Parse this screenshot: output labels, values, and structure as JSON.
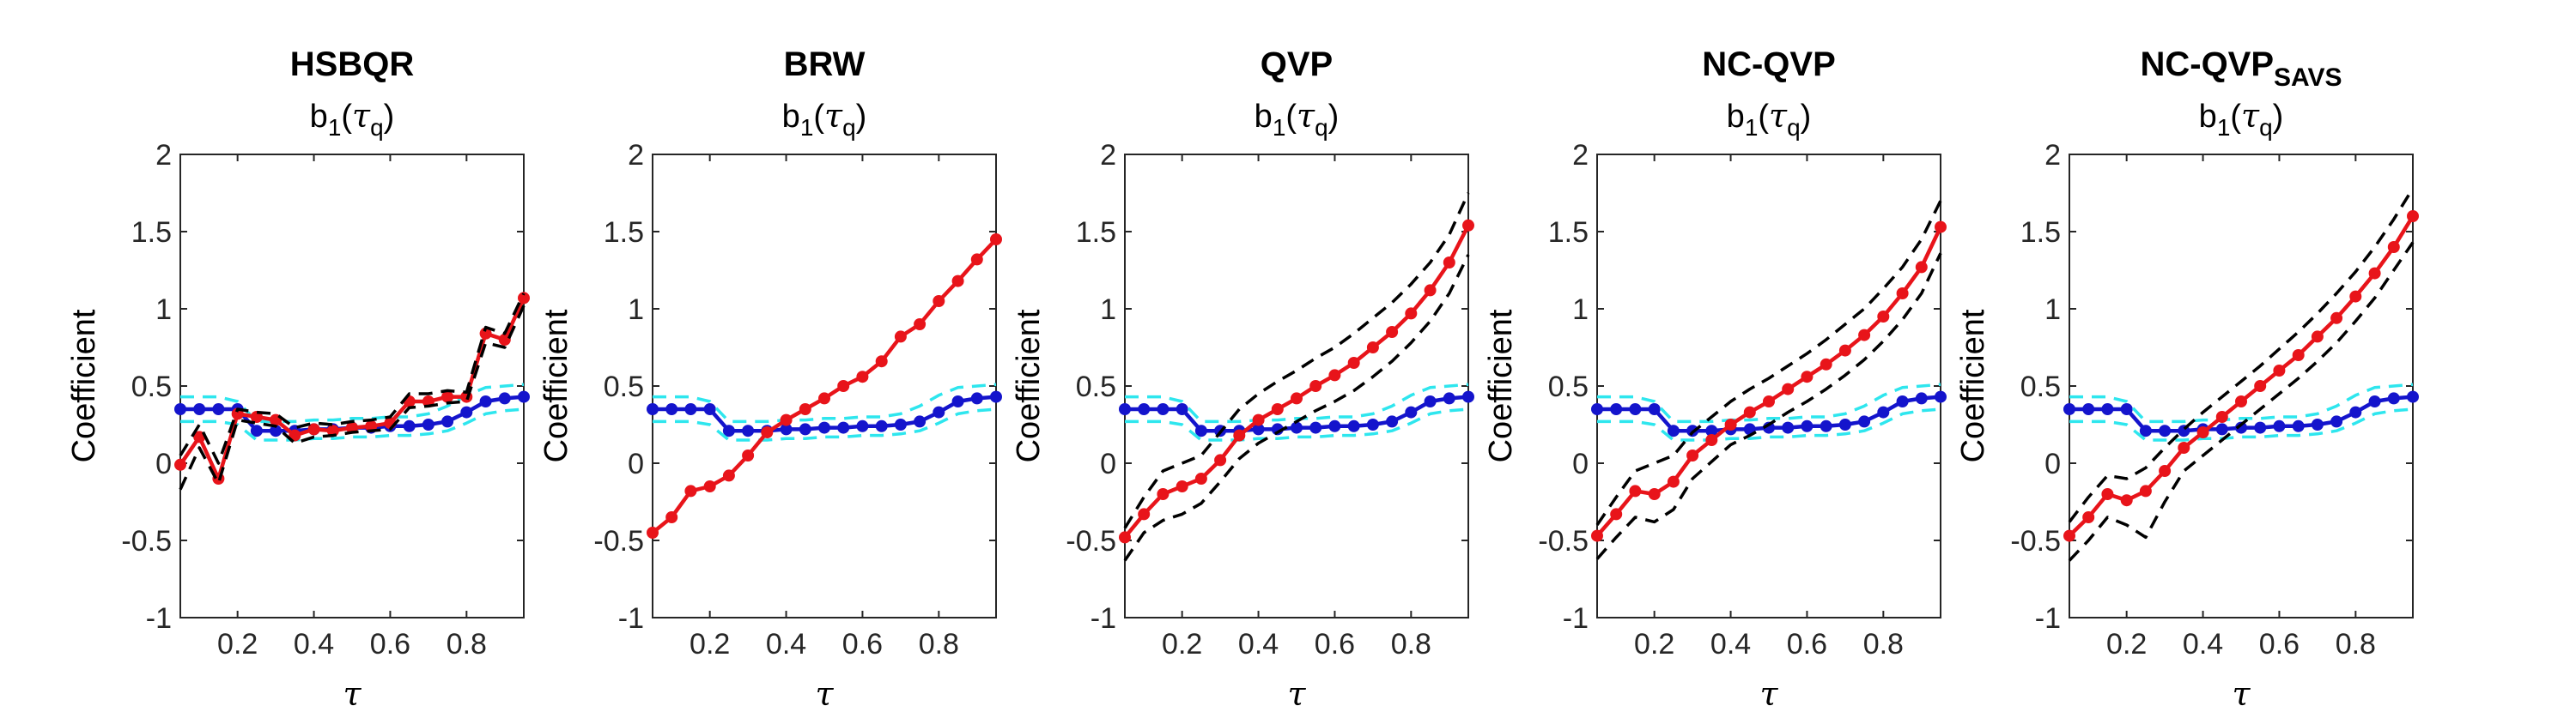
{
  "figure": {
    "colors": {
      "red": "#e8141a",
      "blue": "#1414cc",
      "cyan": "#2ee6ee",
      "black": "#000000"
    }
  },
  "chart_data": [
    {
      "type": "line",
      "title": "HSBQR",
      "title_subscript": "",
      "subtitle": "b1(τq)",
      "subtitle_parts": {
        "base": "b",
        "sub1": "1",
        "open": "(",
        "tau": "τ",
        "sub2": "q",
        "close": ")"
      },
      "xlabel": "τ",
      "ylabel": "Coefficient",
      "xlim": [
        0.05,
        0.95
      ],
      "ylim": [
        -1,
        2
      ],
      "xticks": [
        "0.2",
        "0.4",
        "0.6",
        "0.8"
      ],
      "yticks": [
        "-1",
        "-0.5",
        "0",
        "0.5",
        "1",
        "1.5",
        "2"
      ],
      "x": [
        0.05,
        0.1,
        0.15,
        0.2,
        0.25,
        0.3,
        0.35,
        0.4,
        0.45,
        0.5,
        0.55,
        0.6,
        0.65,
        0.7,
        0.75,
        0.8,
        0.85,
        0.9,
        0.95
      ],
      "series": [
        {
          "color": "blue",
          "style": "solid-markers",
          "values": [
            0.35,
            0.35,
            0.35,
            0.35,
            0.21,
            0.21,
            0.21,
            0.22,
            0.22,
            0.23,
            0.23,
            0.24,
            0.24,
            0.25,
            0.27,
            0.33,
            0.4,
            0.42,
            0.43
          ]
        },
        {
          "color": "cyan",
          "style": "dashed",
          "values": [
            0.43,
            0.43,
            0.43,
            0.4,
            0.27,
            0.27,
            0.27,
            0.28,
            0.28,
            0.29,
            0.29,
            0.3,
            0.3,
            0.32,
            0.37,
            0.44,
            0.49,
            0.5,
            0.51
          ]
        },
        {
          "color": "cyan",
          "style": "dashed",
          "values": [
            0.27,
            0.27,
            0.27,
            0.25,
            0.15,
            0.15,
            0.15,
            0.16,
            0.16,
            0.17,
            0.17,
            0.18,
            0.18,
            0.19,
            0.21,
            0.26,
            0.32,
            0.34,
            0.35
          ]
        },
        {
          "color": "red",
          "style": "solid-markers",
          "values": [
            -0.01,
            0.17,
            -0.1,
            0.32,
            0.3,
            0.28,
            0.18,
            0.22,
            0.21,
            0.23,
            0.24,
            0.26,
            0.4,
            0.4,
            0.43,
            0.43,
            0.84,
            0.8,
            1.07
          ]
        },
        {
          "color": "black",
          "style": "dashed",
          "values": [
            0.05,
            0.25,
            0.0,
            0.35,
            0.33,
            0.32,
            0.23,
            0.26,
            0.25,
            0.27,
            0.28,
            0.3,
            0.45,
            0.45,
            0.47,
            0.46,
            0.88,
            0.84,
            1.1
          ]
        },
        {
          "color": "black",
          "style": "dashed",
          "values": [
            -0.17,
            0.1,
            -0.13,
            0.28,
            0.26,
            0.24,
            0.13,
            0.17,
            0.18,
            0.2,
            0.21,
            0.22,
            0.36,
            0.37,
            0.39,
            0.4,
            0.78,
            0.75,
            1.02
          ]
        }
      ]
    },
    {
      "type": "line",
      "title": "BRW",
      "title_subscript": "",
      "subtitle": "b1(τq)",
      "subtitle_parts": {
        "base": "b",
        "sub1": "1",
        "open": "(",
        "tau": "τ",
        "sub2": "q",
        "close": ")"
      },
      "xlabel": "τ",
      "ylabel": "Coefficient",
      "xlim": [
        0.05,
        0.95
      ],
      "ylim": [
        -1,
        2
      ],
      "xticks": [
        "0.2",
        "0.4",
        "0.6",
        "0.8"
      ],
      "yticks": [
        "-1",
        "-0.5",
        "0",
        "0.5",
        "1",
        "1.5",
        "2"
      ],
      "x": [
        0.05,
        0.1,
        0.15,
        0.2,
        0.25,
        0.3,
        0.35,
        0.4,
        0.45,
        0.5,
        0.55,
        0.6,
        0.65,
        0.7,
        0.75,
        0.8,
        0.85,
        0.9,
        0.95
      ],
      "series": [
        {
          "color": "blue",
          "style": "solid-markers",
          "values": [
            0.35,
            0.35,
            0.35,
            0.35,
            0.21,
            0.21,
            0.21,
            0.22,
            0.22,
            0.23,
            0.23,
            0.24,
            0.24,
            0.25,
            0.27,
            0.33,
            0.4,
            0.42,
            0.43
          ]
        },
        {
          "color": "cyan",
          "style": "dashed",
          "values": [
            0.43,
            0.43,
            0.43,
            0.4,
            0.27,
            0.27,
            0.27,
            0.28,
            0.28,
            0.29,
            0.29,
            0.3,
            0.3,
            0.32,
            0.37,
            0.44,
            0.49,
            0.5,
            0.51
          ]
        },
        {
          "color": "cyan",
          "style": "dashed",
          "values": [
            0.27,
            0.27,
            0.27,
            0.25,
            0.15,
            0.15,
            0.15,
            0.16,
            0.16,
            0.17,
            0.17,
            0.18,
            0.18,
            0.19,
            0.21,
            0.26,
            0.32,
            0.34,
            0.35
          ]
        },
        {
          "color": "red",
          "style": "solid-markers",
          "values": [
            -0.45,
            -0.35,
            -0.18,
            -0.15,
            -0.08,
            0.05,
            0.2,
            0.28,
            0.35,
            0.42,
            0.5,
            0.56,
            0.66,
            0.82,
            0.9,
            1.05,
            1.18,
            1.32,
            1.45
          ]
        }
      ]
    },
    {
      "type": "line",
      "title": "QVP",
      "title_subscript": "",
      "subtitle": "b1(τq)",
      "subtitle_parts": {
        "base": "b",
        "sub1": "1",
        "open": "(",
        "tau": "τ",
        "sub2": "q",
        "close": ")"
      },
      "xlabel": "τ",
      "ylabel": "Coefficient",
      "xlim": [
        0.05,
        0.95
      ],
      "ylim": [
        -1,
        2
      ],
      "xticks": [
        "0.2",
        "0.4",
        "0.6",
        "0.8"
      ],
      "yticks": [
        "-1",
        "-0.5",
        "0",
        "0.5",
        "1",
        "1.5",
        "2"
      ],
      "x": [
        0.05,
        0.1,
        0.15,
        0.2,
        0.25,
        0.3,
        0.35,
        0.4,
        0.45,
        0.5,
        0.55,
        0.6,
        0.65,
        0.7,
        0.75,
        0.8,
        0.85,
        0.9,
        0.95
      ],
      "series": [
        {
          "color": "blue",
          "style": "solid-markers",
          "values": [
            0.35,
            0.35,
            0.35,
            0.35,
            0.21,
            0.21,
            0.21,
            0.22,
            0.22,
            0.23,
            0.23,
            0.24,
            0.24,
            0.25,
            0.27,
            0.33,
            0.4,
            0.42,
            0.43
          ]
        },
        {
          "color": "cyan",
          "style": "dashed",
          "values": [
            0.43,
            0.43,
            0.43,
            0.4,
            0.27,
            0.27,
            0.27,
            0.28,
            0.28,
            0.29,
            0.29,
            0.3,
            0.3,
            0.32,
            0.37,
            0.44,
            0.49,
            0.5,
            0.51
          ]
        },
        {
          "color": "cyan",
          "style": "dashed",
          "values": [
            0.27,
            0.27,
            0.27,
            0.25,
            0.15,
            0.15,
            0.15,
            0.16,
            0.16,
            0.17,
            0.17,
            0.18,
            0.18,
            0.19,
            0.21,
            0.26,
            0.32,
            0.34,
            0.35
          ]
        },
        {
          "color": "red",
          "style": "solid-markers",
          "values": [
            -0.48,
            -0.33,
            -0.2,
            -0.15,
            -0.1,
            0.02,
            0.18,
            0.28,
            0.35,
            0.42,
            0.5,
            0.57,
            0.65,
            0.75,
            0.85,
            0.97,
            1.12,
            1.3,
            1.54
          ]
        },
        {
          "color": "black",
          "style": "dashed",
          "values": [
            -0.42,
            -0.22,
            -0.05,
            0.0,
            0.05,
            0.2,
            0.35,
            0.45,
            0.53,
            0.6,
            0.68,
            0.75,
            0.84,
            0.94,
            1.04,
            1.16,
            1.3,
            1.48,
            1.75
          ]
        },
        {
          "color": "black",
          "style": "dashed",
          "values": [
            -0.63,
            -0.45,
            -0.37,
            -0.33,
            -0.26,
            -0.12,
            0.03,
            0.13,
            0.2,
            0.27,
            0.34,
            0.4,
            0.47,
            0.56,
            0.66,
            0.78,
            0.92,
            1.1,
            1.35
          ]
        }
      ]
    },
    {
      "type": "line",
      "title": "NC-QVP",
      "title_subscript": "",
      "subtitle": "b1(τq)",
      "subtitle_parts": {
        "base": "b",
        "sub1": "1",
        "open": "(",
        "tau": "τ",
        "sub2": "q",
        "close": ")"
      },
      "xlabel": "τ",
      "ylabel": "Coefficient",
      "xlim": [
        0.05,
        0.95
      ],
      "ylim": [
        -1,
        2
      ],
      "xticks": [
        "0.2",
        "0.4",
        "0.6",
        "0.8"
      ],
      "yticks": [
        "-1",
        "-0.5",
        "0",
        "0.5",
        "1",
        "1.5",
        "2"
      ],
      "x": [
        0.05,
        0.1,
        0.15,
        0.2,
        0.25,
        0.3,
        0.35,
        0.4,
        0.45,
        0.5,
        0.55,
        0.6,
        0.65,
        0.7,
        0.75,
        0.8,
        0.85,
        0.9,
        0.95
      ],
      "series": [
        {
          "color": "blue",
          "style": "solid-markers",
          "values": [
            0.35,
            0.35,
            0.35,
            0.35,
            0.21,
            0.21,
            0.21,
            0.22,
            0.22,
            0.23,
            0.23,
            0.24,
            0.24,
            0.25,
            0.27,
            0.33,
            0.4,
            0.42,
            0.43
          ]
        },
        {
          "color": "cyan",
          "style": "dashed",
          "values": [
            0.43,
            0.43,
            0.43,
            0.4,
            0.27,
            0.27,
            0.27,
            0.28,
            0.28,
            0.29,
            0.29,
            0.3,
            0.3,
            0.32,
            0.37,
            0.44,
            0.49,
            0.5,
            0.51
          ]
        },
        {
          "color": "cyan",
          "style": "dashed",
          "values": [
            0.27,
            0.27,
            0.27,
            0.25,
            0.15,
            0.15,
            0.15,
            0.16,
            0.16,
            0.17,
            0.17,
            0.18,
            0.18,
            0.19,
            0.21,
            0.26,
            0.32,
            0.34,
            0.35
          ]
        },
        {
          "color": "red",
          "style": "solid-markers",
          "values": [
            -0.47,
            -0.33,
            -0.18,
            -0.2,
            -0.12,
            0.05,
            0.15,
            0.25,
            0.33,
            0.4,
            0.48,
            0.56,
            0.64,
            0.73,
            0.83,
            0.95,
            1.1,
            1.27,
            1.53
          ]
        },
        {
          "color": "black",
          "style": "dashed",
          "values": [
            -0.4,
            -0.22,
            -0.05,
            0.0,
            0.05,
            0.2,
            0.3,
            0.4,
            0.48,
            0.55,
            0.63,
            0.71,
            0.8,
            0.9,
            1.0,
            1.13,
            1.27,
            1.45,
            1.7
          ]
        },
        {
          "color": "black",
          "style": "dashed",
          "values": [
            -0.62,
            -0.48,
            -0.35,
            -0.38,
            -0.3,
            -0.1,
            0.01,
            0.12,
            0.18,
            0.25,
            0.33,
            0.4,
            0.48,
            0.57,
            0.67,
            0.79,
            0.93,
            1.1,
            1.36
          ]
        }
      ]
    },
    {
      "type": "line",
      "title": "NC-QVP",
      "title_subscript": "SAVS",
      "subtitle": "b1(τq)",
      "subtitle_parts": {
        "base": "b",
        "sub1": "1",
        "open": "(",
        "tau": "τ",
        "sub2": "q",
        "close": ")"
      },
      "xlabel": "τ",
      "ylabel": "Coefficient",
      "xlim": [
        0.05,
        0.95
      ],
      "ylim": [
        -1,
        2
      ],
      "xticks": [
        "0.2",
        "0.4",
        "0.6",
        "0.8"
      ],
      "yticks": [
        "-1",
        "-0.5",
        "0",
        "0.5",
        "1",
        "1.5",
        "2"
      ],
      "x": [
        0.05,
        0.1,
        0.15,
        0.2,
        0.25,
        0.3,
        0.35,
        0.4,
        0.45,
        0.5,
        0.55,
        0.6,
        0.65,
        0.7,
        0.75,
        0.8,
        0.85,
        0.9,
        0.95
      ],
      "series": [
        {
          "color": "blue",
          "style": "solid-markers",
          "values": [
            0.35,
            0.35,
            0.35,
            0.35,
            0.21,
            0.21,
            0.21,
            0.22,
            0.22,
            0.23,
            0.23,
            0.24,
            0.24,
            0.25,
            0.27,
            0.33,
            0.4,
            0.42,
            0.43
          ]
        },
        {
          "color": "cyan",
          "style": "dashed",
          "values": [
            0.43,
            0.43,
            0.43,
            0.4,
            0.27,
            0.27,
            0.27,
            0.28,
            0.28,
            0.29,
            0.29,
            0.3,
            0.3,
            0.32,
            0.37,
            0.44,
            0.49,
            0.5,
            0.51
          ]
        },
        {
          "color": "cyan",
          "style": "dashed",
          "values": [
            0.27,
            0.27,
            0.27,
            0.25,
            0.15,
            0.15,
            0.15,
            0.16,
            0.16,
            0.17,
            0.17,
            0.18,
            0.18,
            0.19,
            0.21,
            0.26,
            0.32,
            0.34,
            0.35
          ]
        },
        {
          "color": "red",
          "style": "solid-markers",
          "values": [
            -0.47,
            -0.35,
            -0.2,
            -0.24,
            -0.18,
            -0.05,
            0.1,
            0.2,
            0.3,
            0.4,
            0.5,
            0.6,
            0.7,
            0.82,
            0.94,
            1.08,
            1.23,
            1.4,
            1.6
          ]
        },
        {
          "color": "black",
          "style": "dashed",
          "values": [
            -0.38,
            -0.22,
            -0.08,
            -0.1,
            -0.03,
            0.1,
            0.22,
            0.33,
            0.43,
            0.53,
            0.63,
            0.74,
            0.85,
            0.97,
            1.1,
            1.24,
            1.4,
            1.58,
            1.78
          ]
        },
        {
          "color": "black",
          "style": "dashed",
          "values": [
            -0.63,
            -0.5,
            -0.35,
            -0.4,
            -0.48,
            -0.25,
            -0.05,
            0.05,
            0.15,
            0.25,
            0.35,
            0.45,
            0.55,
            0.66,
            0.78,
            0.92,
            1.07,
            1.25,
            1.43
          ]
        }
      ]
    }
  ]
}
